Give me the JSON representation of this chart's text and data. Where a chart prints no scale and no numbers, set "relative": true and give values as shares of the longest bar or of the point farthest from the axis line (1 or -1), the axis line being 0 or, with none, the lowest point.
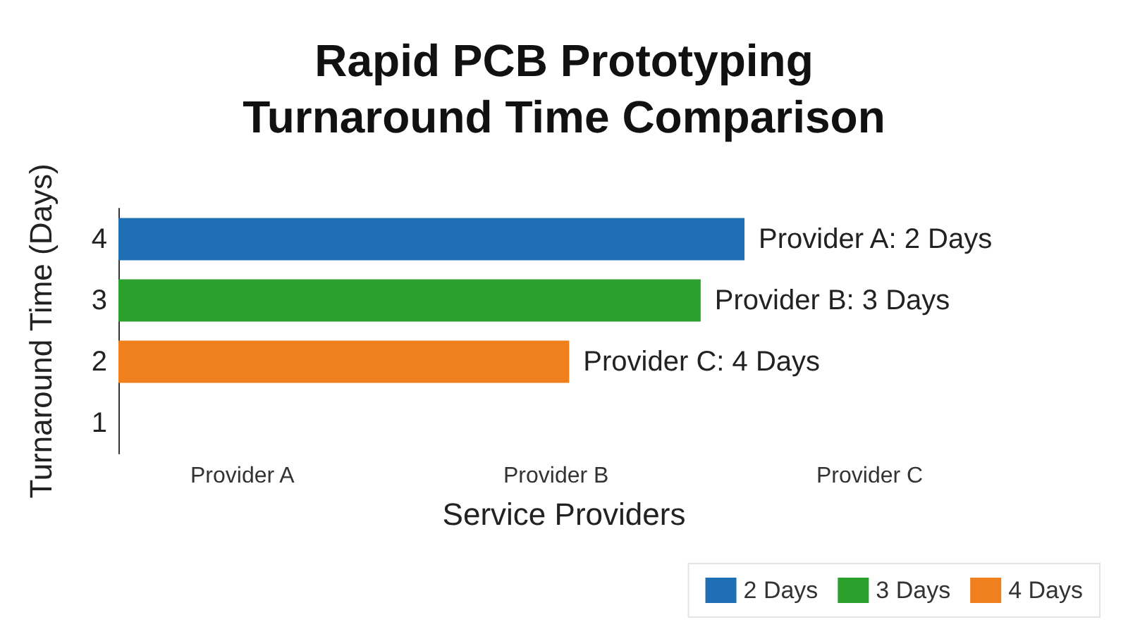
{
  "chart_data": {
    "type": "bar",
    "orientation": "horizontal",
    "stacked": true,
    "relative": true,
    "title": "Rapid PCB Prototyping\nTurnaround Time Comparison",
    "xlabel": "Service Providers",
    "ylabel": "Turnaround Time (Days)",
    "categories": [
      "4",
      "3",
      "2",
      "1"
    ],
    "series": [
      {
        "name": "2 Days",
        "color": "#1f6fb4",
        "values": [
          1,
          null,
          null,
          null
        ]
      },
      {
        "name": "3 Days",
        "color": "#2ca02c",
        "values": [
          null,
          0.93,
          null,
          null
        ]
      },
      {
        "name": "4 Days",
        "color": "#f07f1e",
        "values": [
          null,
          null,
          0.72,
          null
        ]
      }
    ],
    "annotations": [
      "Provider A",
      "Provider B",
      "Provider C",
      {
        "text": "Provider A: 2 Days",
        "x": 1,
        "y": "4"
      },
      {
        "text": "Provider B: 3 Days",
        "x": 0.93,
        "y": "3"
      },
      {
        "text": "Provider C: 4 Days",
        "x": 0.72,
        "y": "2"
      }
    ],
    "legend": "bottom right"
  }
}
